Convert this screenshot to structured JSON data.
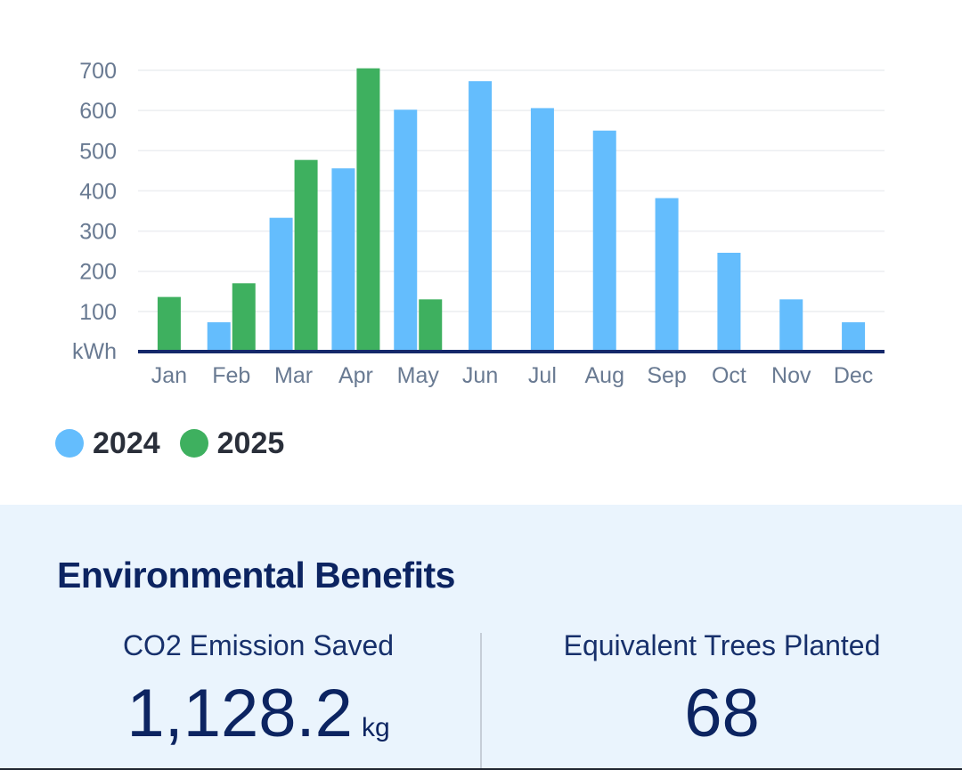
{
  "colors": {
    "series_2024": "#64bdfd",
    "series_2025": "#3eb05f",
    "axis_line": "#14286a",
    "grid": "#eceef1",
    "tick_text": "#697a92",
    "panel_bg": "#eaf4fd",
    "title_text": "#0c2461"
  },
  "chart_data": {
    "type": "bar",
    "unit_label": "kWh",
    "categories": [
      "Jan",
      "Feb",
      "Mar",
      "Apr",
      "May",
      "Jun",
      "Jul",
      "Aug",
      "Sep",
      "Oct",
      "Nov",
      "Dec"
    ],
    "series": [
      {
        "name": "2024",
        "values": [
          null,
          73,
          333,
          456,
          602,
          673,
          606,
          550,
          382,
          246,
          130,
          73
        ]
      },
      {
        "name": "2025",
        "values": [
          136,
          170,
          477,
          705,
          130,
          null,
          null,
          null,
          null,
          null,
          null,
          null
        ]
      }
    ],
    "yticks": [
      "100",
      "200",
      "300",
      "400",
      "500",
      "600",
      "700"
    ],
    "ylim": [
      0,
      700
    ],
    "grid": true,
    "legend_position": "bottom-left"
  },
  "legend": {
    "items": [
      {
        "label": "2024",
        "color": "#64bdfd"
      },
      {
        "label": "2025",
        "color": "#3eb05f"
      }
    ]
  },
  "benefits": {
    "title": "Environmental Benefits",
    "co2": {
      "label": "CO2 Emission Saved",
      "value": "1,128.2",
      "unit": "kg"
    },
    "trees": {
      "label": "Equivalent Trees Planted",
      "value": "68"
    }
  }
}
